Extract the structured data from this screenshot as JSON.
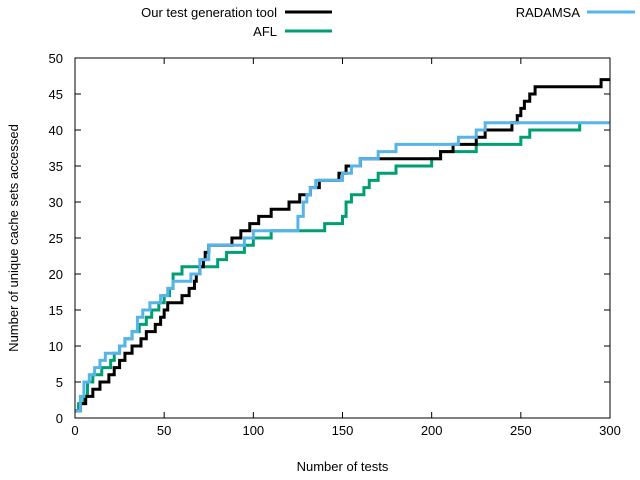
{
  "chart_data": {
    "type": "line",
    "title": "",
    "xlabel": "Number of tests",
    "ylabel": "Number of unique cache sets accessed",
    "xlim": [
      0,
      300
    ],
    "ylim": [
      0,
      50
    ],
    "xticks": [
      0,
      50,
      100,
      150,
      200,
      250,
      300
    ],
    "yticks": [
      0,
      5,
      10,
      15,
      20,
      25,
      30,
      35,
      40,
      45,
      50
    ],
    "grid": false,
    "legend_position": "top",
    "step": true,
    "series": [
      {
        "name": "Our test generation tool",
        "color": "#000000",
        "x": [
          0,
          3,
          6,
          10,
          14,
          19,
          22,
          25,
          28,
          32,
          37,
          40,
          42,
          45,
          48,
          50,
          52,
          56,
          60,
          64,
          67,
          68,
          70,
          72,
          73,
          75,
          82,
          85,
          86,
          88,
          91,
          93,
          95,
          98,
          103,
          106,
          110,
          113,
          116,
          118,
          120,
          123,
          126,
          128,
          130,
          132,
          134,
          137,
          140,
          145,
          148,
          150,
          152,
          155,
          158,
          160,
          175,
          185,
          195,
          205,
          208,
          212,
          215,
          220,
          225,
          230,
          240,
          245,
          248,
          250,
          252,
          255,
          258,
          270,
          280,
          290,
          295,
          300
        ],
        "y": [
          1,
          2,
          3,
          4,
          5,
          6,
          7,
          8,
          9,
          10,
          11,
          12,
          12,
          13,
          14,
          15,
          16,
          16,
          17,
          18,
          19,
          20,
          21,
          22,
          23,
          24,
          24,
          24,
          24,
          25,
          25,
          26,
          26,
          27,
          28,
          28,
          29,
          29,
          29,
          29,
          30,
          30,
          31,
          31,
          31,
          32,
          32,
          33,
          33,
          33,
          34,
          34,
          35,
          35,
          35,
          36,
          36,
          36,
          36,
          37,
          37,
          38,
          38,
          38,
          39,
          40,
          40,
          41,
          42,
          43,
          44,
          45,
          46,
          46,
          46,
          46,
          47,
          47
        ]
      },
      {
        "name": "AFL",
        "color": "#009e73",
        "x": [
          0,
          2,
          5,
          7,
          10,
          15,
          20,
          22,
          25,
          28,
          32,
          36,
          40,
          43,
          47,
          50,
          53,
          55,
          60,
          65,
          70,
          75,
          80,
          85,
          90,
          95,
          100,
          105,
          110,
          115,
          120,
          125,
          130,
          140,
          145,
          150,
          152,
          155,
          158,
          162,
          165,
          168,
          170,
          175,
          178,
          180,
          190,
          198,
          200,
          205,
          210,
          220,
          225,
          230,
          245,
          250,
          255,
          260,
          270,
          280,
          283
        ],
        "y": [
          1,
          2,
          3,
          5,
          6,
          7,
          8,
          9,
          10,
          11,
          12,
          13,
          14,
          15,
          16,
          17,
          18,
          20,
          21,
          21,
          21,
          21,
          22,
          23,
          23,
          24,
          25,
          25,
          26,
          26,
          26,
          26,
          26,
          27,
          27,
          28,
          30,
          31,
          31,
          32,
          33,
          33,
          34,
          34,
          34,
          35,
          35,
          35,
          36,
          37,
          37,
          37,
          38,
          38,
          38,
          39,
          40,
          40,
          40,
          40,
          41
        ]
      },
      {
        "name": "RADAMSA",
        "color": "#56b4e9",
        "x": [
          0,
          3,
          5,
          8,
          11,
          14,
          17,
          20,
          25,
          28,
          32,
          35,
          38,
          42,
          45,
          48,
          52,
          55,
          60,
          65,
          70,
          75,
          80,
          85,
          90,
          95,
          100,
          110,
          115,
          120,
          125,
          128,
          130,
          132,
          135,
          140,
          145,
          150,
          153,
          155,
          160,
          165,
          170,
          175,
          180,
          190,
          200,
          210,
          215,
          220,
          225,
          230,
          250,
          270,
          290,
          300
        ],
        "y": [
          1,
          3,
          5,
          6,
          7,
          8,
          9,
          9,
          10,
          11,
          12,
          14,
          15,
          16,
          16,
          17,
          18,
          19,
          19,
          20,
          22,
          24,
          24,
          24,
          24,
          25,
          26,
          26,
          26,
          26,
          28,
          30,
          31,
          32,
          33,
          33,
          33,
          34,
          34,
          35,
          36,
          36,
          37,
          37,
          38,
          38,
          38,
          38,
          39,
          39,
          40,
          41,
          41,
          41,
          41,
          41
        ]
      }
    ]
  }
}
